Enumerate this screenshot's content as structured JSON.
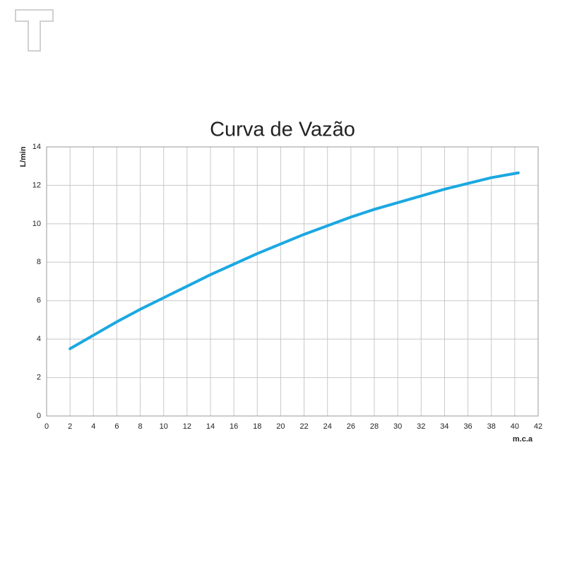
{
  "chart_data": {
    "type": "line",
    "title": "Curva de Vazão",
    "x_label": "m.c.a",
    "y_label": "L/min",
    "series": [
      {
        "name": "Vazão",
        "color": "#1ba8e2",
        "x": [
          2,
          4,
          6,
          8,
          10,
          12,
          14,
          16,
          18,
          20,
          22,
          24,
          26,
          28,
          30,
          32,
          34,
          36,
          38,
          40.3
        ],
        "values": [
          3.5,
          4.2,
          4.9,
          5.55,
          6.15,
          6.75,
          7.35,
          7.9,
          8.45,
          8.95,
          9.45,
          9.9,
          10.35,
          10.75,
          11.1,
          11.45,
          11.8,
          12.1,
          12.4,
          12.65
        ]
      }
    ],
    "xlim": [
      0,
      42
    ],
    "xticks": [
      0,
      2,
      4,
      6,
      8,
      10,
      12,
      14,
      16,
      18,
      20,
      22,
      24,
      26,
      28,
      30,
      32,
      34,
      36,
      38,
      40,
      42
    ],
    "ylim": [
      0,
      14
    ],
    "yticks": [
      0,
      2,
      4,
      6,
      8,
      10,
      12,
      14
    ],
    "grid": true
  }
}
